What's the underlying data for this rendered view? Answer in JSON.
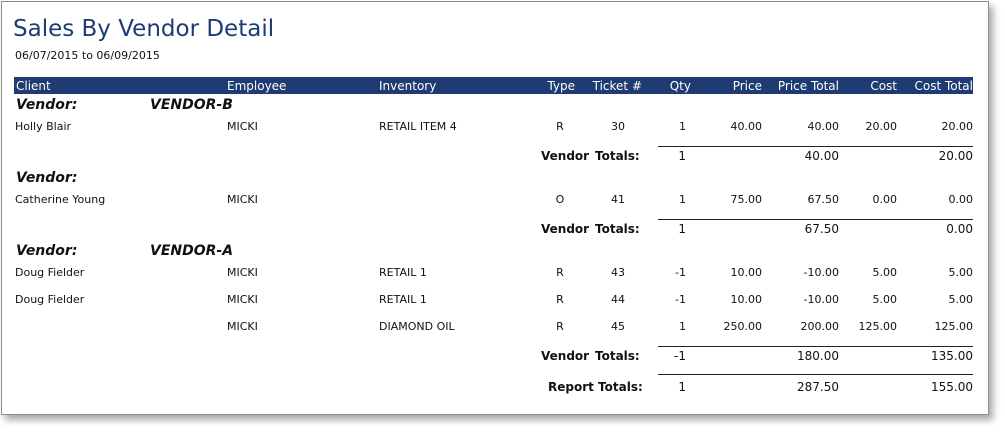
{
  "report": {
    "title": "Sales By Vendor Detail",
    "date_range": "06/07/2015 to 06/09/2015"
  },
  "columns": {
    "client": "Client",
    "employee": "Employee",
    "inventory": "Inventory",
    "type": "Type",
    "ticket": "Ticket #",
    "qty": "Qty",
    "price": "Price",
    "price_total": "Price Total",
    "cost": "Cost",
    "cost_total": "Cost Total"
  },
  "labels": {
    "vendor": "Vendor:",
    "vendor_totals_word": "Vendor",
    "totals_word": "Totals:",
    "report_totals": "Report Totals:"
  },
  "groups": [
    {
      "vendor": "VENDOR-B",
      "rows": [
        {
          "client": "Holly Blair",
          "employee": "MICKI",
          "inventory": "RETAIL ITEM 4",
          "type": "R",
          "ticket": "30",
          "qty": "1",
          "price": "40.00",
          "price_total": "40.00",
          "cost": "20.00",
          "cost_total": "20.00"
        }
      ],
      "totals": {
        "qty": "1",
        "price_total": "40.00",
        "cost_total": "20.00"
      }
    },
    {
      "vendor": "",
      "rows": [
        {
          "client": "Catherine Young",
          "employee": "MICKI",
          "inventory": "",
          "type": "O",
          "ticket": "41",
          "qty": "1",
          "price": "75.00",
          "price_total": "67.50",
          "cost": "0.00",
          "cost_total": "0.00"
        }
      ],
      "totals": {
        "qty": "1",
        "price_total": "67.50",
        "cost_total": "0.00"
      }
    },
    {
      "vendor": "VENDOR-A",
      "rows": [
        {
          "client": "Doug Fielder",
          "employee": "MICKI",
          "inventory": "RETAIL 1",
          "type": "R",
          "ticket": "43",
          "qty": "-1",
          "price": "10.00",
          "price_total": "-10.00",
          "cost": "5.00",
          "cost_total": "5.00"
        },
        {
          "client": "Doug Fielder",
          "employee": "MICKI",
          "inventory": "RETAIL 1",
          "type": "R",
          "ticket": "44",
          "qty": "-1",
          "price": "10.00",
          "price_total": "-10.00",
          "cost": "5.00",
          "cost_total": "5.00"
        },
        {
          "client": "",
          "employee": "MICKI",
          "inventory": "DIAMOND OIL",
          "type": "R",
          "ticket": "45",
          "qty": "1",
          "price": "250.00",
          "price_total": "200.00",
          "cost": "125.00",
          "cost_total": "125.00"
        }
      ],
      "totals": {
        "qty": "-1",
        "price_total": "180.00",
        "cost_total": "135.00"
      }
    }
  ],
  "report_totals": {
    "qty": "1",
    "price_total": "287.50",
    "cost_total": "155.00"
  },
  "colors": {
    "header_bg": "#1f3b73",
    "title": "#1f3b73"
  }
}
